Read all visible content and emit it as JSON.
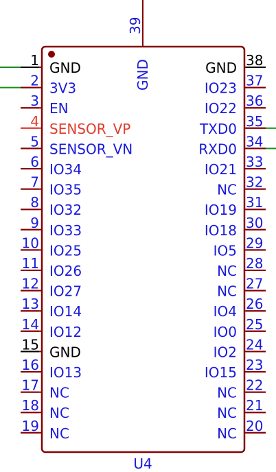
{
  "component": {
    "reference": "U4",
    "top_pin": {
      "number": "39",
      "name": "GND"
    }
  },
  "colors": {
    "body_outline": "#840000",
    "pin_line": "#840000",
    "pin_text": "#1a1adb",
    "power_text": "#000000",
    "highlight_text": "#e03c2c",
    "wire": "#1a8c1a",
    "background": "#ffffff"
  },
  "left_pins": [
    {
      "number": "1",
      "name": "GND",
      "style": "power",
      "wire": true
    },
    {
      "number": "2",
      "name": "3V3",
      "style": "normal",
      "wire": true
    },
    {
      "number": "3",
      "name": "EN",
      "style": "normal",
      "wire": false
    },
    {
      "number": "4",
      "name": "SENSOR_VP",
      "style": "highlight",
      "wire": false
    },
    {
      "number": "5",
      "name": "SENSOR_VN",
      "style": "normal",
      "wire": false
    },
    {
      "number": "6",
      "name": "IO34",
      "style": "normal",
      "wire": false
    },
    {
      "number": "7",
      "name": "IO35",
      "style": "normal",
      "wire": false
    },
    {
      "number": "8",
      "name": "IO32",
      "style": "normal",
      "wire": false
    },
    {
      "number": "9",
      "name": "IO33",
      "style": "normal",
      "wire": false
    },
    {
      "number": "10",
      "name": "IO25",
      "style": "normal",
      "wire": false
    },
    {
      "number": "11",
      "name": "IO26",
      "style": "normal",
      "wire": false
    },
    {
      "number": "12",
      "name": "IO27",
      "style": "normal",
      "wire": false
    },
    {
      "number": "13",
      "name": "IO14",
      "style": "normal",
      "wire": false
    },
    {
      "number": "14",
      "name": "IO12",
      "style": "normal",
      "wire": false
    },
    {
      "number": "15",
      "name": "GND",
      "style": "power",
      "wire": false
    },
    {
      "number": "16",
      "name": "IO13",
      "style": "normal",
      "wire": false
    },
    {
      "number": "17",
      "name": "NC",
      "style": "normal",
      "wire": false
    },
    {
      "number": "18",
      "name": "NC",
      "style": "normal",
      "wire": false
    },
    {
      "number": "19",
      "name": "NC",
      "style": "normal",
      "wire": false
    }
  ],
  "right_pins": [
    {
      "number": "38",
      "name": "GND",
      "style": "power",
      "wire": false
    },
    {
      "number": "37",
      "name": "IO23",
      "style": "normal",
      "wire": false
    },
    {
      "number": "36",
      "name": "IO22",
      "style": "normal",
      "wire": false
    },
    {
      "number": "35",
      "name": "TXD0",
      "style": "normal",
      "wire": true
    },
    {
      "number": "34",
      "name": "RXD0",
      "style": "normal",
      "wire": true
    },
    {
      "number": "33",
      "name": "IO21",
      "style": "normal",
      "wire": false
    },
    {
      "number": "32",
      "name": "NC",
      "style": "normal",
      "wire": false
    },
    {
      "number": "31",
      "name": "IO19",
      "style": "normal",
      "wire": false
    },
    {
      "number": "30",
      "name": "IO18",
      "style": "normal",
      "wire": false
    },
    {
      "number": "29",
      "name": "IO5",
      "style": "normal",
      "wire": false
    },
    {
      "number": "28",
      "name": "NC",
      "style": "normal",
      "wire": false
    },
    {
      "number": "27",
      "name": "NC",
      "style": "normal",
      "wire": false
    },
    {
      "number": "26",
      "name": "IO4",
      "style": "normal",
      "wire": false
    },
    {
      "number": "25",
      "name": "IO0",
      "style": "normal",
      "wire": false
    },
    {
      "number": "24",
      "name": "IO2",
      "style": "normal",
      "wire": false
    },
    {
      "number": "23",
      "name": "IO15",
      "style": "normal",
      "wire": false
    },
    {
      "number": "22",
      "name": "NC",
      "style": "normal",
      "wire": false
    },
    {
      "number": "21",
      "name": "NC",
      "style": "normal",
      "wire": false
    },
    {
      "number": "20",
      "name": "NC",
      "style": "normal",
      "wire": false
    }
  ]
}
